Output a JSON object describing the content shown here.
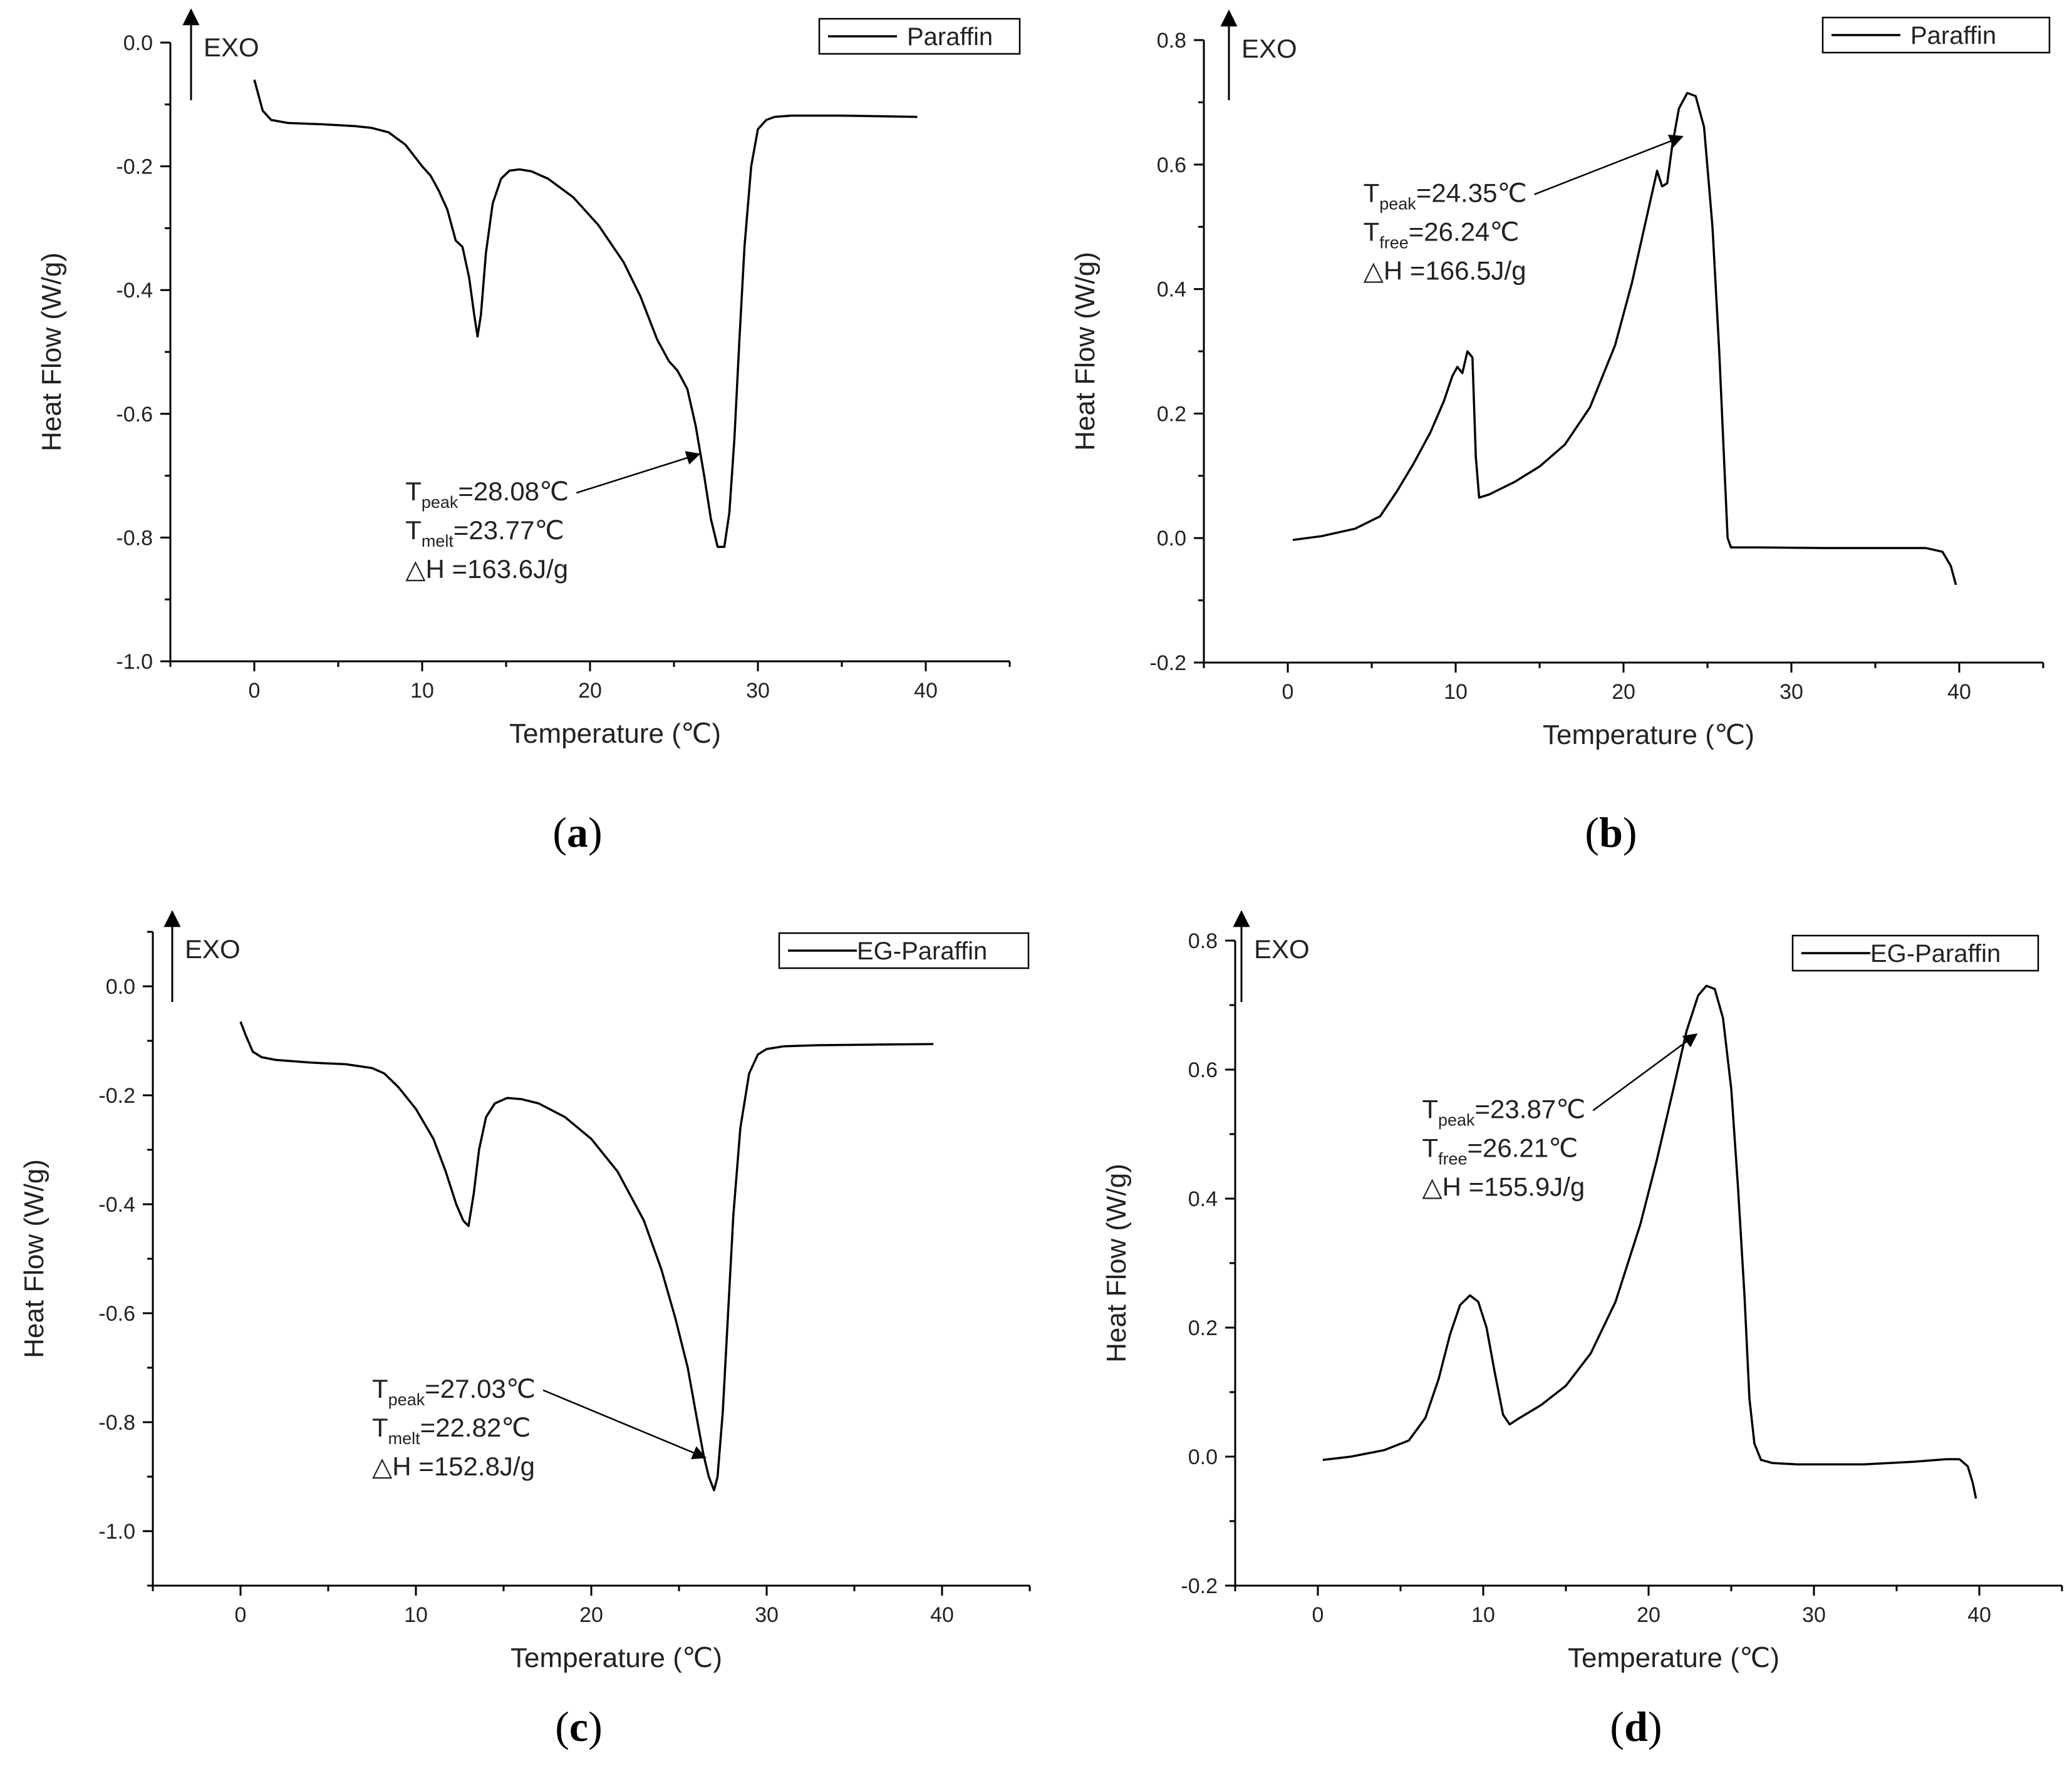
{
  "chart_data": [
    {
      "type": "line",
      "panel_label": {
        "open": "(",
        "letter": "a",
        "close": ")"
      },
      "legend": "Paraffin",
      "exo_label": "EXO",
      "xlabel": "Temperature (℃)",
      "ylabel": "Heat Flow (W/g)",
      "xlim": [
        -5,
        45
      ],
      "ylim": [
        -1.0,
        0.0
      ],
      "xticks": [
        0,
        10,
        20,
        30,
        40
      ],
      "xtick_labels": [
        "0",
        "10",
        "20",
        "30",
        "40"
      ],
      "yticks": [
        0.0,
        -0.2,
        -0.4,
        -0.6,
        -0.8,
        -1.0
      ],
      "ytick_labels": [
        "0.0",
        "-0.2",
        "-0.4",
        "-0.6",
        "-0.8",
        "-1.0"
      ],
      "annotation": {
        "lines": [
          {
            "main": "T",
            "sub": "peak",
            "rest": "=28.08℃"
          },
          {
            "main": "T",
            "sub": "melt",
            "rest": "=23.77℃"
          },
          {
            "main": "△H =163.6J/g",
            "sub": "",
            "rest": ""
          }
        ],
        "arrow_to": [
          26.5,
          -0.665
        ],
        "text_anchor": [
          9,
          -0.74
        ]
      },
      "series": [
        {
          "name": "Paraffin",
          "x": [
            0,
            0.2,
            0.5,
            1,
            2,
            4,
            6,
            7,
            8,
            9,
            10,
            10.5,
            11,
            11.5,
            12,
            12.4,
            12.8,
            13.1,
            13.3,
            13.5,
            13.8,
            14.2,
            14.7,
            15.2,
            15.8,
            16.5,
            17.5,
            19,
            20.5,
            22,
            23,
            24,
            24.7,
            25.2,
            25.8,
            26.3,
            26.8,
            27.2,
            27.6,
            28.0,
            28.3,
            28.6,
            28.9,
            29.2,
            29.6,
            30,
            30.5,
            31,
            32,
            35,
            39.5
          ],
          "y": [
            -0.06,
            -0.08,
            -0.11,
            -0.125,
            -0.13,
            -0.132,
            -0.135,
            -0.138,
            -0.145,
            -0.165,
            -0.2,
            -0.215,
            -0.24,
            -0.27,
            -0.32,
            -0.33,
            -0.38,
            -0.44,
            -0.475,
            -0.44,
            -0.34,
            -0.26,
            -0.22,
            -0.207,
            -0.205,
            -0.208,
            -0.22,
            -0.25,
            -0.295,
            -0.355,
            -0.41,
            -0.48,
            -0.515,
            -0.53,
            -0.56,
            -0.62,
            -0.7,
            -0.77,
            -0.815,
            -0.815,
            -0.76,
            -0.64,
            -0.48,
            -0.33,
            -0.2,
            -0.14,
            -0.125,
            -0.12,
            -0.118,
            -0.118,
            -0.12
          ]
        }
      ]
    },
    {
      "type": "line",
      "panel_label": {
        "open": "(",
        "letter": "b",
        "close": ")"
      },
      "legend": "Paraffin",
      "exo_label": "EXO",
      "xlabel": "Temperature (℃)",
      "ylabel": "Heat Flow (W/g)",
      "xlim": [
        -5,
        45
      ],
      "ylim": [
        -0.2,
        0.8
      ],
      "xticks": [
        0,
        10,
        20,
        30,
        40
      ],
      "xtick_labels": [
        "0",
        "10",
        "20",
        "30",
        "40"
      ],
      "yticks": [
        0.8,
        0.6,
        0.4,
        0.2,
        0.0,
        -0.2
      ],
      "ytick_labels": [
        "0.8",
        "0.6",
        "0.4",
        "0.2",
        "0.0",
        "-0.2"
      ],
      "annotation": {
        "lines": [
          {
            "main": "T",
            "sub": "peak",
            "rest": "=24.35℃"
          },
          {
            "main": "T",
            "sub": "free",
            "rest": "=26.24℃"
          },
          {
            "main": "△H =166.5J/g",
            "sub": "",
            "rest": ""
          }
        ],
        "arrow_to": [
          23.5,
          0.645
        ],
        "text_anchor": [
          4.5,
          0.54
        ]
      },
      "series": [
        {
          "name": "Paraffin",
          "x": [
            0.3,
            2,
            4,
            5.5,
            6.5,
            7.5,
            8.5,
            9.3,
            9.8,
            10.1,
            10.4,
            10.7,
            11.0,
            11.2,
            11.4,
            12,
            13.5,
            15,
            16.5,
            18,
            19.5,
            20.5,
            21.5,
            22.0,
            22.3,
            22.6,
            22.9,
            23.3,
            23.8,
            24.3,
            24.8,
            25.3,
            25.7,
            26.0,
            26.2,
            26.4,
            28,
            32,
            36,
            38,
            39,
            39.5,
            39.8
          ],
          "y": [
            -0.003,
            0.003,
            0.015,
            0.035,
            0.075,
            0.12,
            0.17,
            0.22,
            0.26,
            0.275,
            0.265,
            0.3,
            0.29,
            0.13,
            0.065,
            0.07,
            0.09,
            0.115,
            0.15,
            0.21,
            0.31,
            0.41,
            0.53,
            0.59,
            0.565,
            0.57,
            0.63,
            0.69,
            0.715,
            0.71,
            0.66,
            0.5,
            0.3,
            0.12,
            0.0,
            -0.015,
            -0.015,
            -0.016,
            -0.016,
            -0.016,
            -0.022,
            -0.045,
            -0.075
          ]
        }
      ]
    },
    {
      "type": "line",
      "panel_label": {
        "open": "(",
        "letter": "c",
        "close": ")"
      },
      "legend": "EG-Paraffin",
      "exo_label": "EXO",
      "xlabel": "Temperature (℃)",
      "ylabel": "Heat Flow (W/g)",
      "xlim": [
        -5,
        45
      ],
      "ylim": [
        -1.1,
        0.1
      ],
      "xticks": [
        0,
        10,
        20,
        30,
        40
      ],
      "xtick_labels": [
        "0",
        "10",
        "20",
        "30",
        "40"
      ],
      "yticks": [
        0.0,
        -0.2,
        -0.4,
        -0.6,
        -0.8,
        -1.0
      ],
      "ytick_labels": [
        "0.0",
        "-0.2",
        "-0.4",
        "-0.6",
        "-0.8",
        "-1.0"
      ],
      "annotation": {
        "lines": [
          {
            "main": "T",
            "sub": "peak",
            "rest": "=27.03℃"
          },
          {
            "main": "T",
            "sub": "melt",
            "rest": "=22.82℃"
          },
          {
            "main": "△H =152.8J/g",
            "sub": "",
            "rest": ""
          }
        ],
        "arrow_to": [
          26.5,
          -0.865
        ],
        "text_anchor": [
          7.5,
          -0.755
        ]
      },
      "series": [
        {
          "name": "EG-Paraffin",
          "x": [
            0,
            0.3,
            0.7,
            1.2,
            2,
            4,
            6,
            7.5,
            8.2,
            9,
            10,
            11,
            11.7,
            12.3,
            12.7,
            13.0,
            13.3,
            13.6,
            14,
            14.5,
            15.2,
            16,
            17,
            18.5,
            20,
            21.5,
            23,
            24,
            24.8,
            25.5,
            26.0,
            26.4,
            26.7,
            27.0,
            27.2,
            27.5,
            27.8,
            28.1,
            28.5,
            29,
            29.5,
            30,
            31,
            33,
            36,
            39.5
          ],
          "y": [
            -0.065,
            -0.09,
            -0.12,
            -0.13,
            -0.135,
            -0.14,
            -0.143,
            -0.15,
            -0.16,
            -0.185,
            -0.225,
            -0.28,
            -0.34,
            -0.4,
            -0.43,
            -0.44,
            -0.38,
            -0.3,
            -0.24,
            -0.215,
            -0.205,
            -0.207,
            -0.215,
            -0.24,
            -0.28,
            -0.34,
            -0.43,
            -0.52,
            -0.61,
            -0.7,
            -0.79,
            -0.86,
            -0.9,
            -0.925,
            -0.9,
            -0.78,
            -0.6,
            -0.42,
            -0.26,
            -0.16,
            -0.125,
            -0.115,
            -0.11,
            -0.108,
            -0.107,
            -0.106
          ]
        }
      ]
    },
    {
      "type": "line",
      "panel_label": {
        "open": "(",
        "letter": "d",
        "close": ")"
      },
      "legend": "EG-Paraffin",
      "exo_label": "EXO",
      "xlabel": "Temperature (℃)",
      "ylabel": "Heat Flow (W/g)",
      "xlim": [
        -5,
        45
      ],
      "ylim": [
        -0.2,
        0.8
      ],
      "xticks": [
        0,
        10,
        20,
        30,
        40
      ],
      "xtick_labels": [
        "0",
        "10",
        "20",
        "30",
        "40"
      ],
      "yticks": [
        0.8,
        0.6,
        0.4,
        0.2,
        0.0,
        -0.2
      ],
      "ytick_labels": [
        "0.8",
        "0.6",
        "0.4",
        "0.2",
        "0.0",
        "-0.2"
      ],
      "annotation": {
        "lines": [
          {
            "main": "T",
            "sub": "peak",
            "rest": "=23.87℃"
          },
          {
            "main": "T",
            "sub": "free",
            "rest": "=26.21℃"
          },
          {
            "main": "△H =155.9J/g",
            "sub": "",
            "rest": ""
          }
        ],
        "arrow_to": [
          22.9,
          0.655
        ],
        "text_anchor": [
          6.3,
          0.525
        ]
      },
      "series": [
        {
          "name": "EG-Paraffin",
          "x": [
            0.3,
            2,
            4,
            5.5,
            6.5,
            7.3,
            8,
            8.6,
            9.2,
            9.7,
            10.2,
            10.7,
            11.2,
            11.6,
            12.2,
            13.5,
            15,
            16.5,
            18,
            19.5,
            20.5,
            21.5,
            22.3,
            23.0,
            23.5,
            24.0,
            24.5,
            25.0,
            25.4,
            25.8,
            26.1,
            26.4,
            26.8,
            27.5,
            29,
            33,
            36,
            38,
            38.8,
            39.3,
            39.6,
            39.8
          ],
          "y": [
            -0.005,
            0.0,
            0.01,
            0.025,
            0.06,
            0.12,
            0.19,
            0.235,
            0.25,
            0.24,
            0.2,
            0.13,
            0.065,
            0.05,
            0.06,
            0.08,
            0.11,
            0.16,
            0.24,
            0.36,
            0.46,
            0.57,
            0.66,
            0.715,
            0.73,
            0.725,
            0.68,
            0.57,
            0.42,
            0.25,
            0.09,
            0.02,
            -0.005,
            -0.01,
            -0.012,
            -0.012,
            -0.008,
            -0.004,
            -0.004,
            -0.015,
            -0.04,
            -0.065
          ]
        }
      ]
    }
  ]
}
